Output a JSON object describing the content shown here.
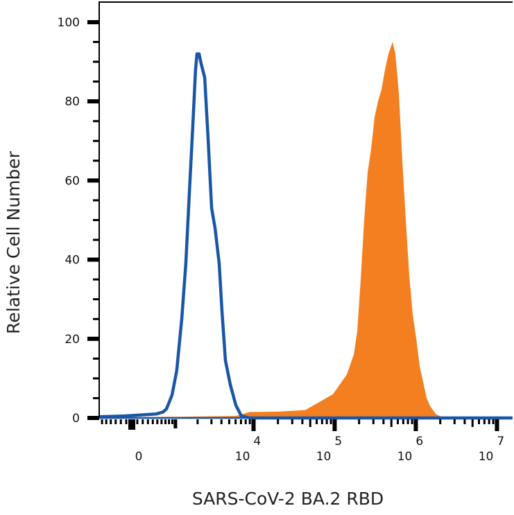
{
  "chart_data": {
    "type": "area",
    "title": "",
    "xlabel": "SARS-CoV-2 BA.2 RBD",
    "ylabel": "Relative Cell Number",
    "x_scale": "biexponential",
    "xlim": [
      -674,
      15500000
    ],
    "ylim": [
      0,
      105
    ],
    "grid": false,
    "x_ticks": [
      {
        "value": 0,
        "label": "0",
        "exp": ""
      },
      {
        "value": 10000,
        "label": "10",
        "exp": "4"
      },
      {
        "value": 100000,
        "label": "10",
        "exp": "5"
      },
      {
        "value": 1000000,
        "label": "10",
        "exp": "6"
      },
      {
        "value": 10000000,
        "label": "10",
        "exp": "7"
      }
    ],
    "y_ticks": [
      0,
      20,
      40,
      60,
      80,
      100
    ],
    "y_tick_labels": [
      "0",
      "20",
      "40",
      "60",
      "80",
      "100"
    ],
    "series": [
      {
        "style": "filled",
        "color": "#f47f20",
        "points": [
          [
            -674,
            0
          ],
          [
            -125,
            0.2
          ],
          [
            943,
            0.3
          ],
          [
            6045,
            0.5
          ],
          [
            8970,
            1.5
          ],
          [
            19750,
            1.6
          ],
          [
            43370,
            2
          ],
          [
            64300,
            4
          ],
          [
            95260,
            6
          ],
          [
            141200,
            11
          ],
          [
            172000,
            16
          ],
          [
            190000,
            22
          ],
          [
            209500,
            35
          ],
          [
            231000,
            50
          ],
          [
            255000,
            62
          ],
          [
            281000,
            68
          ],
          [
            310500,
            76
          ],
          [
            342700,
            80
          ],
          [
            378000,
            83
          ],
          [
            417000,
            88
          ],
          [
            460000,
            92
          ],
          [
            518000,
            95
          ],
          [
            560000,
            92
          ],
          [
            618000,
            82
          ],
          [
            682000,
            65
          ],
          [
            753000,
            50
          ],
          [
            831000,
            36
          ],
          [
            917000,
            26
          ],
          [
            1012000,
            20
          ],
          [
            1117000,
            13
          ],
          [
            1232000,
            9
          ],
          [
            1360000,
            5
          ],
          [
            1500000,
            3
          ],
          [
            1757000,
            1
          ],
          [
            2220000,
            0
          ],
          [
            15500000,
            0
          ]
        ]
      },
      {
        "style": "line",
        "color": "#1a56a8",
        "points": [
          [
            -674,
            0.3
          ],
          [
            -125,
            0.5
          ],
          [
            472,
            1
          ],
          [
            637,
            1.5
          ],
          [
            729,
            2.3
          ],
          [
            889,
            5.8
          ],
          [
            1045,
            12
          ],
          [
            1228,
            25
          ],
          [
            1399,
            39
          ],
          [
            1557,
            56.6
          ],
          [
            1734,
            74
          ],
          [
            1880,
            88
          ],
          [
            1962,
            92
          ],
          [
            2089,
            92
          ],
          [
            2222,
            89.5
          ],
          [
            2462,
            86
          ],
          [
            2722,
            70.6
          ],
          [
            3013,
            53
          ],
          [
            3330,
            48
          ],
          [
            3754,
            39
          ],
          [
            4064,
            27
          ],
          [
            4488,
            14.5
          ],
          [
            5159,
            8.4
          ],
          [
            6045,
            3.2
          ],
          [
            7077,
            0.5
          ],
          [
            8970,
            0
          ],
          [
            15500000,
            0
          ]
        ]
      }
    ]
  }
}
